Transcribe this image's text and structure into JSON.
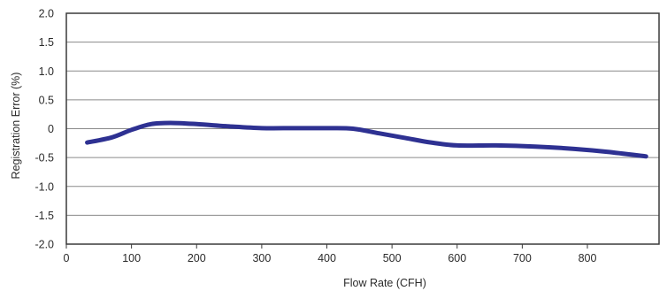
{
  "chart_data": {
    "type": "line",
    "title": "",
    "xlabel": "Flow Rate (CFH)",
    "ylabel": "Registration Error (%)",
    "xlim": [
      0,
      910
    ],
    "ylim": [
      -2.0,
      2.0
    ],
    "x_ticks": [
      0,
      100,
      200,
      300,
      400,
      500,
      600,
      700,
      800
    ],
    "x_tick_labels": [
      "0",
      "100",
      "200",
      "300",
      "400",
      "500",
      "600",
      "700",
      "800"
    ],
    "y_ticks": [
      2.0,
      1.5,
      1.0,
      0.5,
      0,
      -0.5,
      -1.0,
      -1.5,
      -2.0
    ],
    "y_tick_labels": [
      "2.0",
      "1.5",
      "1.0",
      "0.5",
      "0",
      "-0.5",
      "-1.0",
      "-1.5",
      "-2.0"
    ],
    "grid": {
      "horizontal": true,
      "vertical": false
    },
    "legend": "none",
    "series": [
      {
        "color": "#2e3192",
        "x": [
          32,
          70,
          100,
          130,
          160,
          200,
          250,
          300,
          350,
          400,
          440,
          480,
          520,
          560,
          600,
          660,
          720,
          780,
          830,
          890
        ],
        "y": [
          -0.24,
          -0.15,
          -0.02,
          0.08,
          0.1,
          0.08,
          0.04,
          0.01,
          0.01,
          0.01,
          0.0,
          -0.08,
          -0.16,
          -0.24,
          -0.29,
          -0.29,
          -0.31,
          -0.35,
          -0.4,
          -0.48
        ]
      }
    ]
  }
}
